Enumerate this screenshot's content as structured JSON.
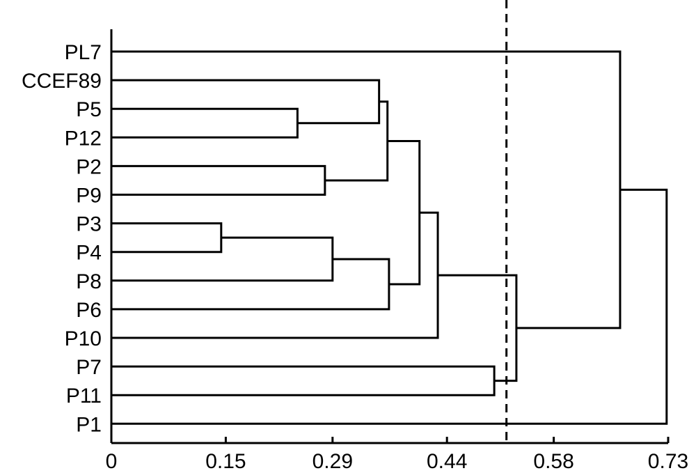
{
  "chart_data": {
    "type": "dendrogram",
    "orientation": "horizontal",
    "title": "",
    "xlabel": "",
    "ylabel": "",
    "xlim": [
      0,
      0.73
    ],
    "x_ticks": [
      "0",
      "0.15",
      "0.29",
      "0.44",
      "0.58",
      "0.73"
    ],
    "x_tick_values": [
      0,
      0.15,
      0.29,
      0.44,
      0.58,
      0.73
    ],
    "cut_threshold": 0.518,
    "leaves": [
      "PL7",
      "CCEF89",
      "P5",
      "P12",
      "P2",
      "P9",
      "P3",
      "P4",
      "P8",
      "P6",
      "P10",
      "P7",
      "P11",
      "P1"
    ],
    "merges": [
      {
        "id": "m1",
        "left": "P3",
        "right": "P4",
        "height": 0.144
      },
      {
        "id": "m2",
        "left": "P5",
        "right": "P12",
        "height": 0.244
      },
      {
        "id": "m3",
        "left": "P2",
        "right": "P9",
        "height": 0.28
      },
      {
        "id": "m4",
        "left": "m1",
        "right": "P8",
        "height": 0.29
      },
      {
        "id": "m5",
        "left": "CCEF89",
        "right": "m2",
        "height": 0.351
      },
      {
        "id": "m6",
        "left": "m4",
        "right": "P6",
        "height": 0.364
      },
      {
        "id": "m7",
        "left": "m5",
        "right": "m3",
        "height": 0.362
      },
      {
        "id": "m8",
        "left": "m7",
        "right": "m6",
        "height": 0.404
      },
      {
        "id": "m9",
        "left": "m8",
        "right": "P10",
        "height": 0.428
      },
      {
        "id": "m10",
        "left": "P7",
        "right": "P11",
        "height": 0.502
      },
      {
        "id": "m11",
        "left": "m9",
        "right": "m10",
        "height": 0.531
      },
      {
        "id": "m12",
        "left": "PL7",
        "right": "m11",
        "height": 0.667
      },
      {
        "id": "m13",
        "left": "m12",
        "right": "P1",
        "height": 0.728
      }
    ]
  }
}
